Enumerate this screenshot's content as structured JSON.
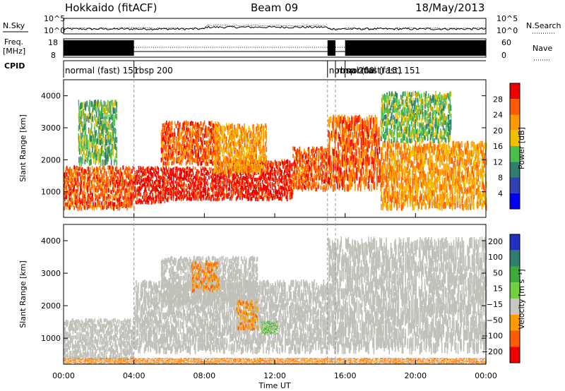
{
  "chart_data": {
    "type": "heatmap",
    "header": {
      "station": "Hokkaido (fitACF)",
      "beam": "Beam 09",
      "date": "18/May/2013"
    },
    "noise_panel": {
      "left_label": "N.Sky",
      "right_label": "N.Search",
      "y_ticks": [
        "10^5",
        "10^0"
      ]
    },
    "freq_panel": {
      "left_label_1": "Freq.",
      "left_label_2": "[MHz]",
      "right_label": "Nave",
      "left_ticks": [
        "18",
        "8"
      ],
      "right_ticks": [
        "60",
        "0"
      ]
    },
    "cpid": {
      "label": "CPID",
      "segments": [
        {
          "start_h": 0.0,
          "end_h": 4.0,
          "text": "normal (fast) 151"
        },
        {
          "start_h": 4.0,
          "end_h": 15.0,
          "text": "rbsp 200"
        },
        {
          "start_h": 15.0,
          "end_h": 15.45,
          "text": "normal (fast) 151"
        },
        {
          "start_h": 15.45,
          "end_h": 16.0,
          "text": "rbsp 200"
        },
        {
          "start_h": 16.0,
          "end_h": 24.0,
          "text": "normal (fast) 151"
        }
      ]
    },
    "x_axis": {
      "label": "Time UT",
      "range_h": [
        0,
        24
      ],
      "ticks": [
        "00:00",
        "04:00",
        "08:00",
        "12:00",
        "16:00",
        "20:00",
        "00:00"
      ]
    },
    "power_panel": {
      "ylabel": "Slant Range [km]",
      "ylim_km": [
        200,
        4500
      ],
      "y_ticks": [
        "1000",
        "2000",
        "3000",
        "4000"
      ],
      "colorbar_label": "Power [dB]",
      "colorbar_range": [
        0,
        32
      ],
      "colorbar_ticks": [
        "4",
        "8",
        "12",
        "16",
        "20",
        "24",
        "28"
      ],
      "colors": [
        "#0000ee",
        "#3040b0",
        "#2f7f6f",
        "#4bbf4b",
        "#f0c000",
        "#ff9a00",
        "#ff5a00",
        "#ee0000"
      ]
    },
    "velocity_panel": {
      "ylabel": "Slant Range [km]",
      "ylim_km": [
        200,
        4500
      ],
      "y_ticks": [
        "1000",
        "2000",
        "3000",
        "4000"
      ],
      "colorbar_label": "Velocity [m s⁻¹]",
      "colorbar_ticks": [
        "200",
        "100",
        "50",
        "15",
        "−15",
        "−50",
        "−100",
        "−200"
      ],
      "colors": [
        "#2030c0",
        "#2f7f6f",
        "#3caa3c",
        "#70d040",
        "#c8c8c0",
        "#ff9a00",
        "#ff5a00",
        "#ee0000"
      ],
      "ground_scatter_color": "#c0c0b8"
    },
    "power_features": [
      {
        "t0": 0.0,
        "t1": 4.0,
        "r0": 400,
        "r1": 1700,
        "level": 6
      },
      {
        "t0": 4.0,
        "t1": 6.0,
        "r0": 600,
        "r1": 1700,
        "level": 7
      },
      {
        "t0": 6.0,
        "t1": 9.0,
        "r0": 700,
        "r1": 1700,
        "level": 7
      },
      {
        "t0": 9.0,
        "t1": 13.0,
        "r0": 700,
        "r1": 1900,
        "level": 7
      },
      {
        "t0": 13.0,
        "t1": 15.0,
        "r0": 1000,
        "r1": 2300,
        "level": 6
      },
      {
        "t0": 15.0,
        "t1": 18.0,
        "r0": 1000,
        "r1": 3200,
        "level": 6
      },
      {
        "t0": 18.0,
        "t1": 24.0,
        "r0": 400,
        "r1": 2400,
        "level": 5
      },
      {
        "t0": 5.5,
        "t1": 8.8,
        "r0": 1800,
        "r1": 3100,
        "level": 6
      },
      {
        "t0": 8.5,
        "t1": 11.5,
        "r0": 1500,
        "r1": 3000,
        "level": 5
      },
      {
        "t0": 0.8,
        "t1": 3.0,
        "r0": 1800,
        "r1": 3700,
        "level": 3
      },
      {
        "t0": 18.0,
        "t1": 22.0,
        "r0": 2500,
        "r1": 4000,
        "level": 3
      }
    ],
    "velocity_features": [
      {
        "t0": 0.0,
        "t1": 4.0,
        "r0": 300,
        "r1": 1500,
        "level": 4
      },
      {
        "t0": 4.0,
        "t1": 15.0,
        "r0": 500,
        "r1": 2600,
        "level": 4
      },
      {
        "t0": 5.5,
        "t1": 11.0,
        "r0": 2000,
        "r1": 3400,
        "level": 4
      },
      {
        "t0": 15.0,
        "t1": 24.0,
        "r0": 500,
        "r1": 3800,
        "level": 4
      },
      {
        "t0": 7.2,
        "t1": 8.8,
        "r0": 2400,
        "r1": 3300,
        "level": 5
      },
      {
        "t0": 9.8,
        "t1": 11.0,
        "r0": 1200,
        "r1": 2100,
        "level": 5
      },
      {
        "t0": 11.2,
        "t1": 12.2,
        "r0": 1100,
        "r1": 1500,
        "level": 3
      },
      {
        "t0": 0.0,
        "t1": 24.0,
        "r0": 200,
        "r1": 380,
        "level": 5
      }
    ]
  }
}
